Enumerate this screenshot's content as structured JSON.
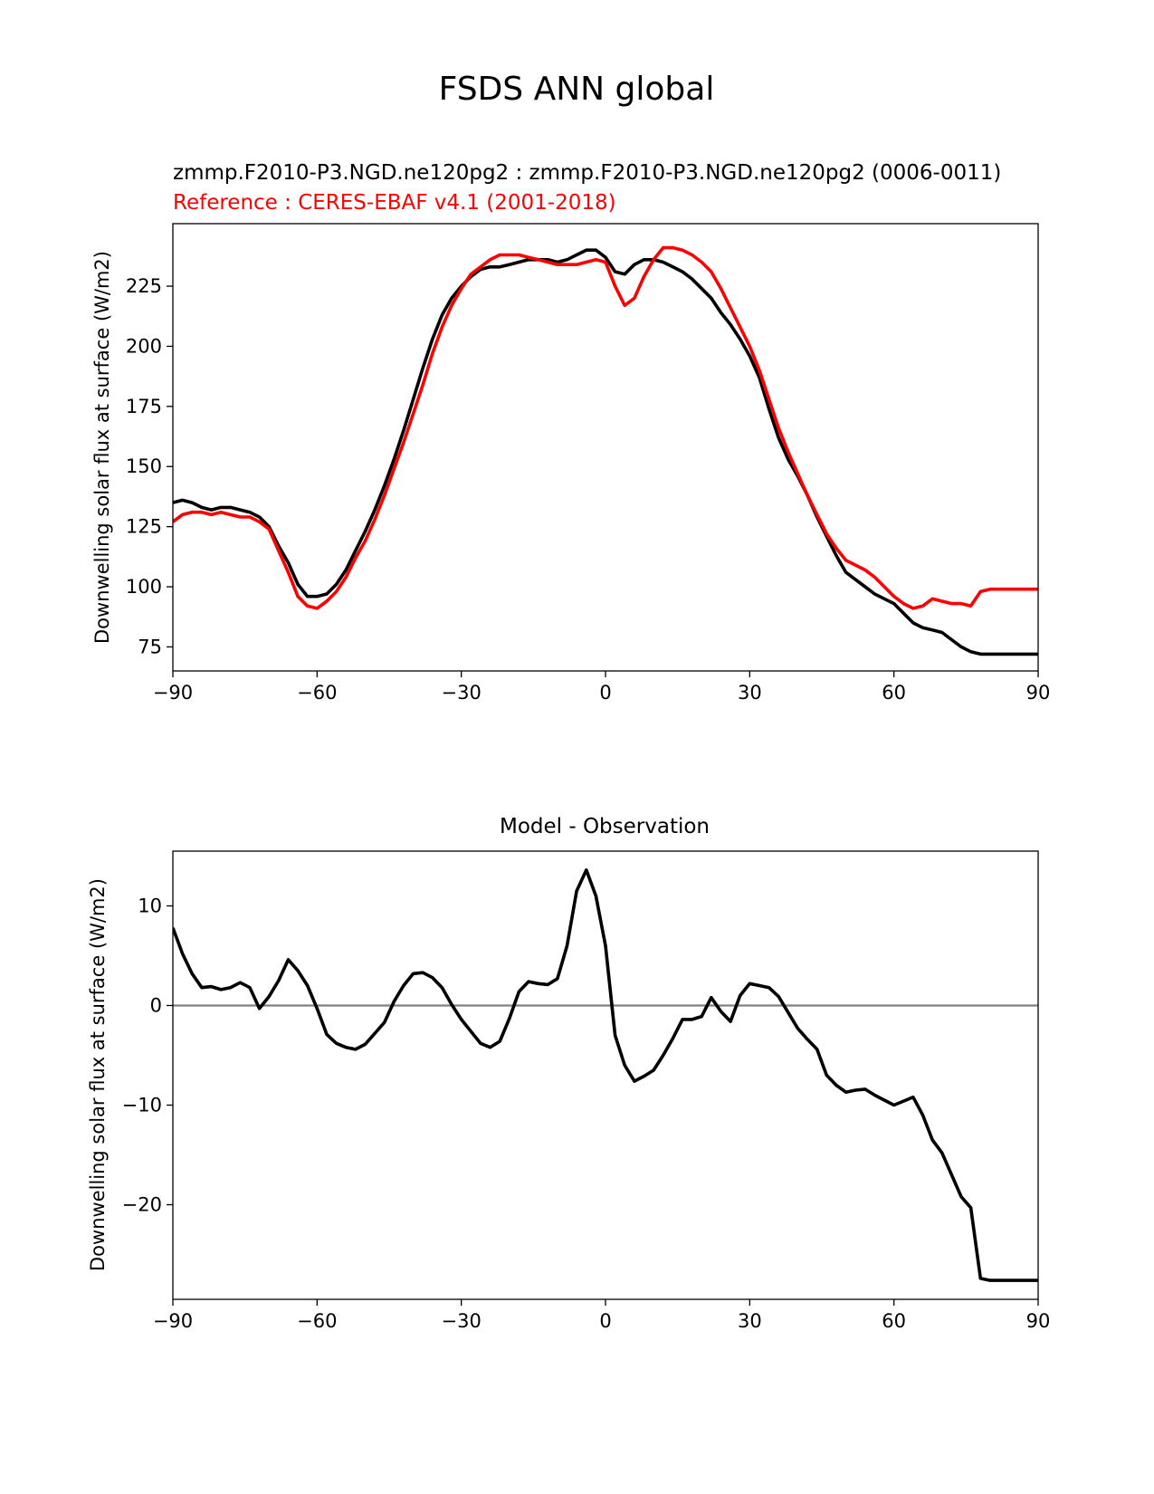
{
  "figure": {
    "title": "FSDS ANN global"
  },
  "chart_data": [
    {
      "type": "line",
      "title_lines": [
        {
          "text": "zmmp.F2010-P3.NGD.ne120pg2 : zmmp.F2010-P3.NGD.ne120pg2 (0006-0011)",
          "color": "#000000"
        },
        {
          "text": "Reference : CERES-EBAF v4.1 (2001-2018)",
          "color": "#ff0000"
        }
      ],
      "xlabel": "",
      "ylabel": "Downwelling solar flux at surface (W/m2)",
      "xlim": [
        -90,
        90
      ],
      "ylim": [
        65,
        251
      ],
      "xticks": [
        -90,
        -60,
        -30,
        0,
        30,
        60,
        90
      ],
      "xtick_labels": [
        "−90",
        "−60",
        "−30",
        "0",
        "30",
        "60",
        "90"
      ],
      "yticks": [
        75,
        100,
        125,
        150,
        175,
        200,
        225
      ],
      "ytick_labels": [
        "75",
        "100",
        "125",
        "150",
        "175",
        "200",
        "225"
      ],
      "grid": false,
      "series": [
        {
          "color": "#000000",
          "x": [
            -90,
            -88,
            -86,
            -84,
            -82,
            -80,
            -78,
            -76,
            -74,
            -72,
            -70,
            -68,
            -66,
            -64,
            -62,
            -60,
            -58,
            -56,
            -54,
            -52,
            -50,
            -48,
            -46,
            -44,
            -42,
            -40,
            -38,
            -36,
            -34,
            -32,
            -30,
            -28,
            -26,
            -24,
            -22,
            -20,
            -18,
            -16,
            -14,
            -12,
            -10,
            -8,
            -6,
            -4,
            -2,
            0,
            2,
            4,
            6,
            8,
            10,
            12,
            14,
            16,
            18,
            20,
            22,
            24,
            26,
            28,
            30,
            32,
            34,
            36,
            38,
            40,
            42,
            44,
            46,
            48,
            50,
            52,
            54,
            56,
            58,
            60,
            62,
            64,
            66,
            68,
            70,
            72,
            74,
            76,
            78,
            80,
            82,
            84,
            86,
            88,
            90
          ],
          "y": [
            135,
            136,
            135,
            133,
            132,
            133,
            133,
            132,
            131,
            129,
            125,
            117,
            110,
            101,
            96,
            96,
            97,
            101,
            107,
            115,
            123,
            132,
            142,
            153,
            165,
            178,
            191,
            203,
            213,
            220,
            225,
            229,
            232,
            233,
            233,
            234,
            235,
            236,
            236,
            236,
            235,
            236,
            238,
            240,
            240,
            237,
            231,
            230,
            234,
            236,
            236,
            235,
            233,
            231,
            228,
            224,
            220,
            214,
            209,
            203,
            196,
            187,
            174,
            162,
            153,
            146,
            138,
            129,
            121,
            113,
            106,
            103,
            100,
            97,
            95,
            93,
            89,
            85,
            83,
            82,
            81,
            78,
            75,
            73,
            72,
            72,
            72,
            72,
            72,
            72,
            72
          ]
        },
        {
          "color": "#ff0000",
          "x": [
            -90,
            -88,
            -86,
            -84,
            -82,
            -80,
            -78,
            -76,
            -74,
            -72,
            -70,
            -68,
            -66,
            -64,
            -62,
            -60,
            -58,
            -56,
            -54,
            -52,
            -50,
            -48,
            -46,
            -44,
            -42,
            -40,
            -38,
            -36,
            -34,
            -32,
            -30,
            -28,
            -26,
            -24,
            -22,
            -20,
            -18,
            -16,
            -14,
            -12,
            -10,
            -8,
            -6,
            -4,
            -2,
            0,
            2,
            4,
            6,
            8,
            10,
            12,
            14,
            16,
            18,
            20,
            22,
            24,
            26,
            28,
            30,
            32,
            34,
            36,
            38,
            40,
            42,
            44,
            46,
            48,
            50,
            52,
            54,
            56,
            58,
            60,
            62,
            64,
            66,
            68,
            70,
            72,
            74,
            76,
            78,
            80,
            82,
            84,
            86,
            88,
            90
          ],
          "y": [
            127,
            130,
            131,
            131,
            130,
            131,
            130,
            129,
            129,
            127,
            124,
            115,
            106,
            96,
            92,
            91,
            94,
            98,
            104,
            112,
            119,
            128,
            138,
            149,
            160,
            172,
            184,
            197,
            208,
            217,
            224,
            230,
            233,
            236,
            238,
            238,
            238,
            237,
            236,
            235,
            234,
            234,
            234,
            235,
            236,
            235,
            225,
            217,
            220,
            229,
            236,
            241,
            241,
            240,
            238,
            235,
            231,
            224,
            216,
            208,
            200,
            190,
            178,
            166,
            156,
            147,
            138,
            130,
            122,
            116,
            111,
            109,
            107,
            104,
            100,
            96,
            93,
            91,
            92,
            95,
            94,
            93,
            93,
            92,
            98,
            99,
            99,
            99,
            99,
            99,
            99
          ]
        }
      ]
    },
    {
      "type": "line",
      "title": "Model - Observation",
      "xlabel": "",
      "ylabel": "Downwelling solar flux at surface (W/m2)",
      "xlim": [
        -90,
        90
      ],
      "ylim": [
        -29.5,
        15.5
      ],
      "xticks": [
        -90,
        -60,
        -30,
        0,
        30,
        60,
        90
      ],
      "xtick_labels": [
        "−90",
        "−60",
        "−30",
        "0",
        "30",
        "60",
        "90"
      ],
      "yticks": [
        -20,
        -10,
        0,
        10
      ],
      "ytick_labels": [
        "−20",
        "−10",
        "0",
        "10"
      ],
      "grid": false,
      "zero_line": {
        "y": 0,
        "color": "#808080"
      },
      "series": [
        {
          "color": "#000000",
          "x": [
            -90,
            -88,
            -86,
            -84,
            -82,
            -80,
            -78,
            -76,
            -74,
            -72,
            -70,
            -68,
            -66,
            -64,
            -62,
            -60,
            -58,
            -56,
            -54,
            -52,
            -50,
            -48,
            -46,
            -44,
            -42,
            -40,
            -38,
            -36,
            -34,
            -32,
            -30,
            -28,
            -26,
            -24,
            -22,
            -20,
            -18,
            -16,
            -14,
            -12,
            -10,
            -8,
            -6,
            -4,
            -2,
            0,
            2,
            4,
            6,
            8,
            10,
            12,
            14,
            16,
            18,
            20,
            22,
            24,
            26,
            28,
            30,
            32,
            34,
            36,
            38,
            40,
            42,
            44,
            46,
            48,
            50,
            52,
            54,
            56,
            58,
            60,
            62,
            64,
            66,
            68,
            70,
            72,
            74,
            76,
            78,
            80,
            82,
            84,
            86,
            88,
            90
          ],
          "y": [
            7.8,
            5.2,
            3.2,
            1.8,
            1.9,
            1.6,
            1.8,
            2.3,
            1.8,
            -0.3,
            0.9,
            2.5,
            4.6,
            3.5,
            2.0,
            -0.3,
            -2.9,
            -3.8,
            -4.2,
            -4.4,
            -3.9,
            -2.8,
            -1.7,
            0.4,
            2.0,
            3.2,
            3.3,
            2.8,
            1.8,
            0.1,
            -1.4,
            -2.6,
            -3.8,
            -4.2,
            -3.6,
            -1.3,
            1.4,
            2.4,
            2.2,
            2.1,
            2.7,
            6.0,
            11.5,
            13.6,
            11.0,
            6.0,
            -3.0,
            -6.0,
            -7.6,
            -7.1,
            -6.5,
            -5.0,
            -3.3,
            -1.4,
            -1.4,
            -1.1,
            0.8,
            -0.6,
            -1.6,
            1.0,
            2.2,
            2.0,
            1.8,
            0.9,
            -0.7,
            -2.3,
            -3.4,
            -4.4,
            -7.0,
            -8.0,
            -8.7,
            -8.5,
            -8.4,
            -9.0,
            -9.5,
            -10.0,
            -9.6,
            -9.2,
            -11.0,
            -13.5,
            -14.8,
            -17.0,
            -19.2,
            -20.3,
            -27.4,
            -27.6,
            -27.6,
            -27.6,
            -27.6,
            -27.6,
            -27.6
          ]
        }
      ]
    }
  ]
}
